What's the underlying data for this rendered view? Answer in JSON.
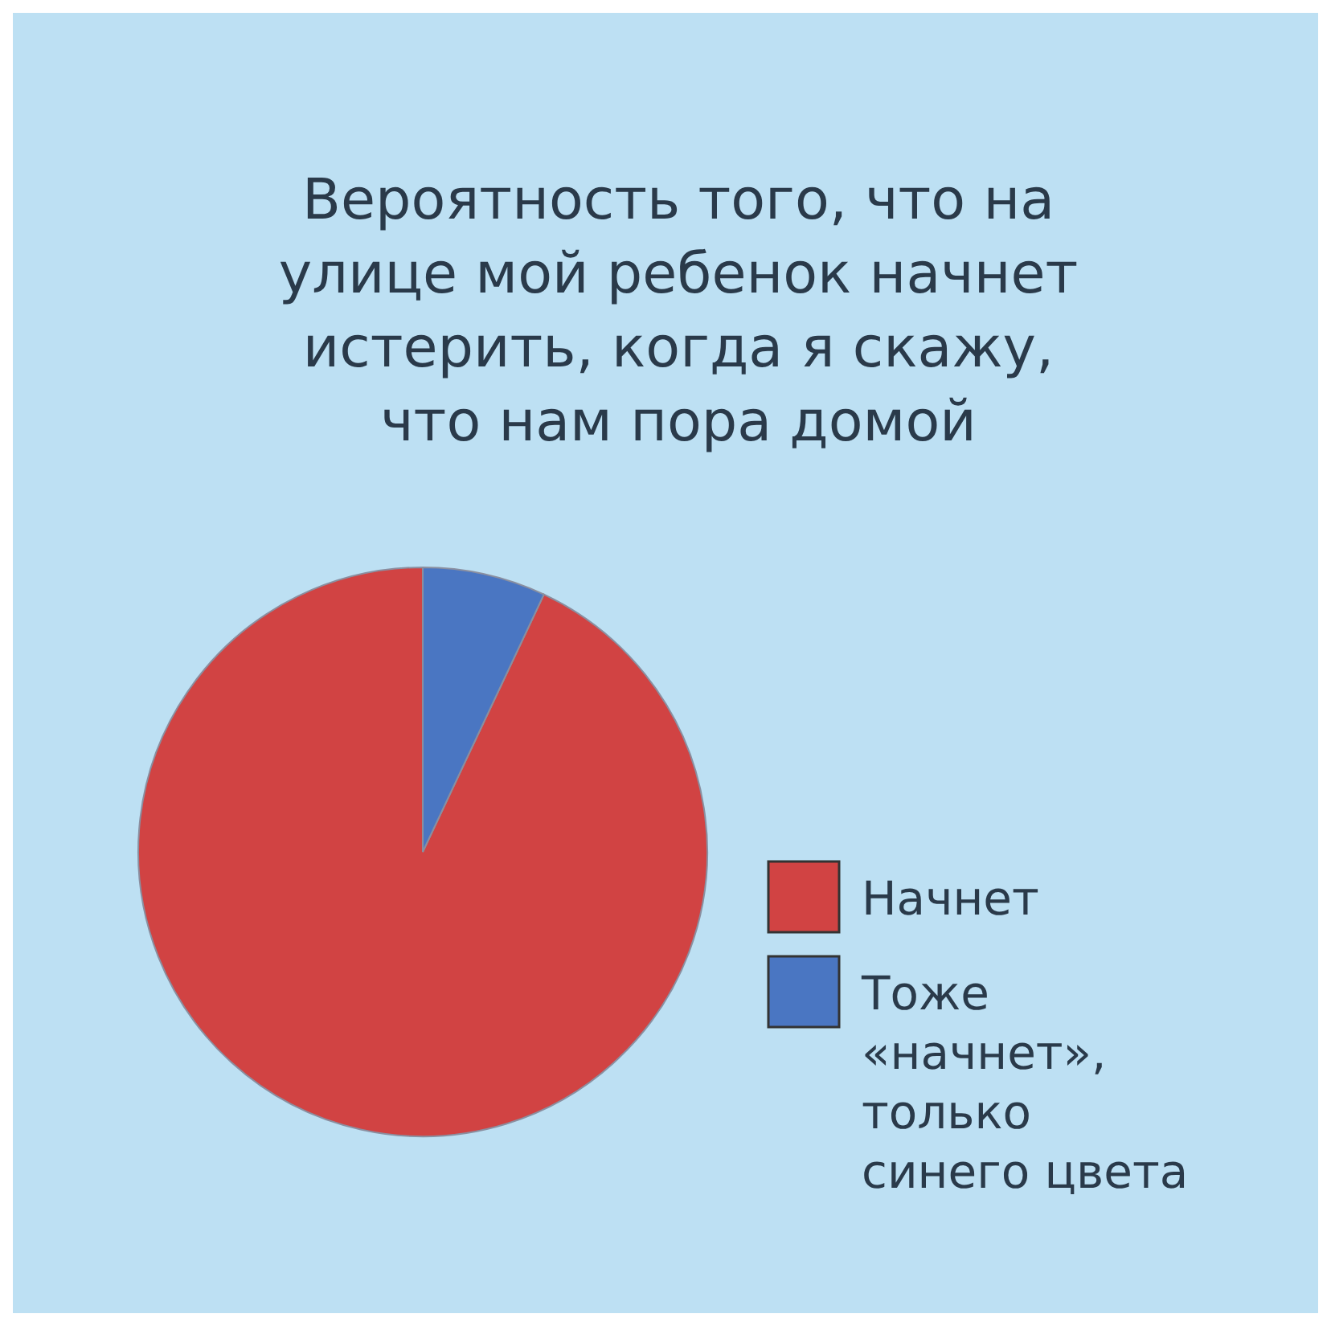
{
  "chart_data": {
    "type": "pie",
    "title": "Вероятность того, что на улице мой ребенок начнет истерить, когда я скажу, что нам пора домой",
    "categories": [
      "Начнет",
      "Тоже «начнет», только синего цвета"
    ],
    "values": [
      93,
      7
    ],
    "colors": [
      "#d14343",
      "#4a76c2"
    ],
    "legend": "right"
  }
}
